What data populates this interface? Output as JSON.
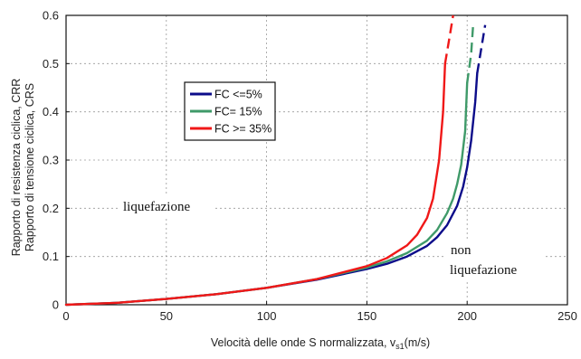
{
  "chart_data": {
    "type": "line",
    "xlabel_main": "Velocità delle onde S normalizzata, v",
    "xlabel_sub": "s1",
    "xlabel_unit": "(m/s)",
    "ylabel_line1": "Rapporto di resistenza ciclica, CRR",
    "ylabel_line2": "Rapporto di tensione ciclica, CRS",
    "xlim": [
      0,
      250
    ],
    "ylim": [
      0,
      0.6
    ],
    "xticks": [
      "0",
      "50",
      "100",
      "150",
      "200",
      "250"
    ],
    "yticks": [
      "0",
      "0.1",
      "0.2",
      "0.3",
      "0.4",
      "0.5",
      "0.6"
    ],
    "grid": "dashed gray lines at each tick",
    "legend_position": "upper-left",
    "annotations": {
      "liquefied": "liquefazione",
      "non_liquefied_line1": "non",
      "non_liquefied_line2": "liquefazione"
    },
    "series": [
      {
        "name": "FC <=5%",
        "color": "#0c0c8a",
        "solid": {
          "x": [
            0,
            25,
            50,
            75,
            100,
            125,
            150,
            160,
            170,
            180,
            185,
            190,
            195,
            198,
            200,
            202,
            204,
            205
          ],
          "y": [
            0,
            0.004,
            0.012,
            0.022,
            0.035,
            0.052,
            0.074,
            0.085,
            0.1,
            0.122,
            0.14,
            0.165,
            0.205,
            0.245,
            0.285,
            0.34,
            0.42,
            0.48
          ]
        },
        "dashed": {
          "x": [
            205,
            207,
            209
          ],
          "y": [
            0.48,
            0.53,
            0.58
          ]
        }
      },
      {
        "name": "FC= 15%",
        "color": "#3f9a69",
        "solid": {
          "x": [
            0,
            25,
            50,
            75,
            100,
            125,
            150,
            160,
            170,
            180,
            185,
            190,
            193,
            195,
            197,
            199,
            200
          ],
          "y": [
            0,
            0.004,
            0.012,
            0.022,
            0.035,
            0.053,
            0.077,
            0.09,
            0.107,
            0.133,
            0.155,
            0.19,
            0.22,
            0.25,
            0.29,
            0.36,
            0.46
          ]
        },
        "dashed": {
          "x": [
            200,
            202,
            203
          ],
          "y": [
            0.46,
            0.52,
            0.58
          ]
        }
      },
      {
        "name": "FC >= 35%",
        "color": "#f01818",
        "solid": {
          "x": [
            0,
            25,
            50,
            75,
            100,
            125,
            150,
            160,
            170,
            175,
            180,
            183,
            186,
            188,
            189
          ],
          "y": [
            0,
            0.004,
            0.012,
            0.022,
            0.035,
            0.053,
            0.08,
            0.097,
            0.123,
            0.145,
            0.18,
            0.22,
            0.3,
            0.4,
            0.5
          ]
        },
        "dashed": {
          "x": [
            189,
            191,
            193
          ],
          "y": [
            0.5,
            0.55,
            0.6
          ]
        }
      }
    ]
  }
}
